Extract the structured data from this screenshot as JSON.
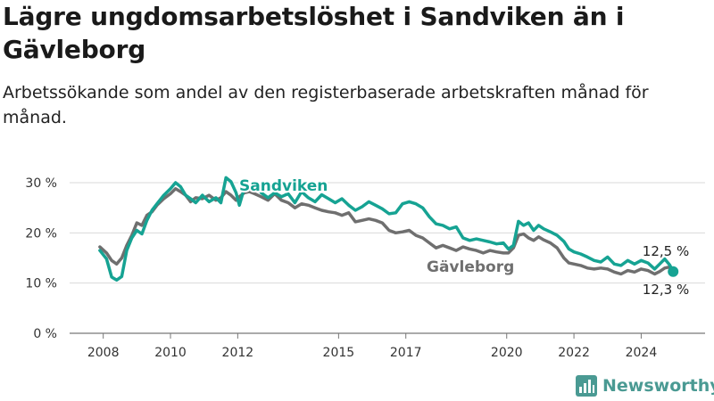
{
  "header": {
    "title": "Lägre ungdomsarbetslöshet i Sandviken än i Gävleborg",
    "subtitle": "Arbetssökande som andel av den registerbaserade arbetskraften månad för månad."
  },
  "brand": {
    "name": "Newsworthy",
    "color": "#4a9a93"
  },
  "chart_data": {
    "type": "line",
    "title": "Lägre ungdomsarbetslöshet i Sandviken än i Gävleborg",
    "subtitle": "Arbetssökande som andel av den registerbaserade arbetskraften månad för månad.",
    "xlabel": "",
    "ylabel": "",
    "ylim": [
      0,
      30
    ],
    "xlim": [
      2007.0,
      2025.9
    ],
    "grid": true,
    "y_ticks": [
      0,
      10,
      20,
      30
    ],
    "y_tick_labels": [
      "0 %",
      "10 %",
      "20 %",
      "30 %"
    ],
    "x_ticks": [
      2008,
      2010,
      2012,
      2015,
      2017,
      2020,
      2022,
      2024
    ],
    "x_tick_labels": [
      "2008",
      "2010",
      "2012",
      "2015",
      "2017",
      "2020",
      "2022",
      "2024"
    ],
    "series": [
      {
        "name": "Sandviken",
        "color": "#16a393",
        "end_label": "12,3 %",
        "points": [
          [
            2007.9,
            16.5
          ],
          [
            2008.1,
            14.8
          ],
          [
            2008.25,
            11.2
          ],
          [
            2008.4,
            10.6
          ],
          [
            2008.55,
            11.3
          ],
          [
            2008.7,
            16.5
          ],
          [
            2008.85,
            19.0
          ],
          [
            2009.0,
            20.5
          ],
          [
            2009.15,
            19.8
          ],
          [
            2009.3,
            22.5
          ],
          [
            2009.45,
            24.5
          ],
          [
            2009.6,
            25.8
          ],
          [
            2009.8,
            27.5
          ],
          [
            2010.0,
            28.8
          ],
          [
            2010.15,
            30.0
          ],
          [
            2010.3,
            29.2
          ],
          [
            2010.45,
            27.5
          ],
          [
            2010.6,
            26.8
          ],
          [
            2010.75,
            26.0
          ],
          [
            2010.95,
            27.5
          ],
          [
            2011.15,
            26.2
          ],
          [
            2011.35,
            27.0
          ],
          [
            2011.5,
            26.0
          ],
          [
            2011.65,
            31.0
          ],
          [
            2011.8,
            30.2
          ],
          [
            2011.95,
            28.0
          ],
          [
            2012.05,
            25.5
          ],
          [
            2012.2,
            29.0
          ],
          [
            2012.35,
            29.8
          ],
          [
            2012.5,
            30.0
          ],
          [
            2012.7,
            28.0
          ],
          [
            2012.9,
            27.0
          ],
          [
            2013.1,
            28.0
          ],
          [
            2013.3,
            27.2
          ],
          [
            2013.5,
            27.8
          ],
          [
            2013.7,
            26.0
          ],
          [
            2013.9,
            28.2
          ],
          [
            2014.1,
            27.0
          ],
          [
            2014.3,
            26.2
          ],
          [
            2014.5,
            27.6
          ],
          [
            2014.7,
            26.8
          ],
          [
            2014.9,
            26.0
          ],
          [
            2015.1,
            26.8
          ],
          [
            2015.3,
            25.5
          ],
          [
            2015.5,
            24.5
          ],
          [
            2015.7,
            25.2
          ],
          [
            2015.9,
            26.2
          ],
          [
            2016.1,
            25.5
          ],
          [
            2016.3,
            24.8
          ],
          [
            2016.5,
            23.8
          ],
          [
            2016.7,
            24.0
          ],
          [
            2016.9,
            25.8
          ],
          [
            2017.1,
            26.2
          ],
          [
            2017.3,
            25.8
          ],
          [
            2017.5,
            25.0
          ],
          [
            2017.7,
            23.2
          ],
          [
            2017.9,
            21.8
          ],
          [
            2018.1,
            21.5
          ],
          [
            2018.3,
            20.8
          ],
          [
            2018.5,
            21.2
          ],
          [
            2018.7,
            19.0
          ],
          [
            2018.9,
            18.5
          ],
          [
            2019.1,
            18.8
          ],
          [
            2019.3,
            18.5
          ],
          [
            2019.5,
            18.2
          ],
          [
            2019.7,
            17.8
          ],
          [
            2019.9,
            18.0
          ],
          [
            2020.05,
            16.8
          ],
          [
            2020.2,
            17.5
          ],
          [
            2020.35,
            22.3
          ],
          [
            2020.5,
            21.5
          ],
          [
            2020.65,
            22.0
          ],
          [
            2020.8,
            20.5
          ],
          [
            2020.95,
            21.5
          ],
          [
            2021.1,
            20.8
          ],
          [
            2021.3,
            20.2
          ],
          [
            2021.5,
            19.5
          ],
          [
            2021.7,
            18.3
          ],
          [
            2021.85,
            16.8
          ],
          [
            2022.0,
            16.2
          ],
          [
            2022.2,
            15.8
          ],
          [
            2022.4,
            15.2
          ],
          [
            2022.6,
            14.5
          ],
          [
            2022.8,
            14.2
          ],
          [
            2023.0,
            15.2
          ],
          [
            2023.2,
            13.8
          ],
          [
            2023.4,
            13.5
          ],
          [
            2023.6,
            14.5
          ],
          [
            2023.8,
            13.8
          ],
          [
            2024.0,
            14.5
          ],
          [
            2024.2,
            14.0
          ],
          [
            2024.4,
            12.8
          ],
          [
            2024.55,
            13.8
          ],
          [
            2024.7,
            14.8
          ],
          [
            2024.85,
            13.6
          ],
          [
            2024.95,
            12.3
          ]
        ]
      },
      {
        "name": "Gävleborg",
        "color": "#6f6f6f",
        "end_label": "12,5 %",
        "points": [
          [
            2007.9,
            17.2
          ],
          [
            2008.1,
            16.0
          ],
          [
            2008.25,
            14.5
          ],
          [
            2008.4,
            13.8
          ],
          [
            2008.55,
            15.0
          ],
          [
            2008.7,
            17.5
          ],
          [
            2008.85,
            19.5
          ],
          [
            2009.0,
            22.0
          ],
          [
            2009.15,
            21.5
          ],
          [
            2009.3,
            23.5
          ],
          [
            2009.45,
            24.2
          ],
          [
            2009.6,
            25.5
          ],
          [
            2009.8,
            26.8
          ],
          [
            2010.0,
            27.8
          ],
          [
            2010.15,
            28.8
          ],
          [
            2010.3,
            28.2
          ],
          [
            2010.45,
            27.5
          ],
          [
            2010.6,
            26.2
          ],
          [
            2010.75,
            27.0
          ],
          [
            2010.95,
            26.8
          ],
          [
            2011.15,
            27.5
          ],
          [
            2011.35,
            26.5
          ],
          [
            2011.5,
            27.0
          ],
          [
            2011.65,
            28.2
          ],
          [
            2011.8,
            27.5
          ],
          [
            2011.95,
            26.5
          ],
          [
            2012.05,
            27.2
          ],
          [
            2012.2,
            28.0
          ],
          [
            2012.35,
            28.2
          ],
          [
            2012.5,
            27.8
          ],
          [
            2012.7,
            27.2
          ],
          [
            2012.9,
            26.5
          ],
          [
            2013.1,
            27.8
          ],
          [
            2013.3,
            26.5
          ],
          [
            2013.5,
            26.0
          ],
          [
            2013.7,
            25.0
          ],
          [
            2013.9,
            25.8
          ],
          [
            2014.1,
            25.5
          ],
          [
            2014.3,
            25.0
          ],
          [
            2014.5,
            24.5
          ],
          [
            2014.7,
            24.2
          ],
          [
            2014.9,
            24.0
          ],
          [
            2015.1,
            23.5
          ],
          [
            2015.3,
            24.0
          ],
          [
            2015.5,
            22.2
          ],
          [
            2015.7,
            22.5
          ],
          [
            2015.9,
            22.8
          ],
          [
            2016.1,
            22.5
          ],
          [
            2016.3,
            22.0
          ],
          [
            2016.5,
            20.5
          ],
          [
            2016.7,
            20.0
          ],
          [
            2016.9,
            20.2
          ],
          [
            2017.1,
            20.5
          ],
          [
            2017.3,
            19.5
          ],
          [
            2017.5,
            19.0
          ],
          [
            2017.7,
            18.0
          ],
          [
            2017.9,
            17.0
          ],
          [
            2018.1,
            17.5
          ],
          [
            2018.3,
            17.0
          ],
          [
            2018.5,
            16.5
          ],
          [
            2018.7,
            17.2
          ],
          [
            2018.9,
            16.8
          ],
          [
            2019.1,
            16.5
          ],
          [
            2019.3,
            16.0
          ],
          [
            2019.5,
            16.5
          ],
          [
            2019.7,
            16.2
          ],
          [
            2019.9,
            16.0
          ],
          [
            2020.05,
            16.0
          ],
          [
            2020.2,
            17.0
          ],
          [
            2020.35,
            19.5
          ],
          [
            2020.5,
            19.8
          ],
          [
            2020.65,
            19.0
          ],
          [
            2020.8,
            18.5
          ],
          [
            2020.95,
            19.2
          ],
          [
            2021.1,
            18.6
          ],
          [
            2021.3,
            18.0
          ],
          [
            2021.5,
            17.0
          ],
          [
            2021.7,
            15.0
          ],
          [
            2021.85,
            14.0
          ],
          [
            2022.0,
            13.8
          ],
          [
            2022.2,
            13.5
          ],
          [
            2022.4,
            13.0
          ],
          [
            2022.6,
            12.8
          ],
          [
            2022.8,
            13.0
          ],
          [
            2023.0,
            12.8
          ],
          [
            2023.2,
            12.2
          ],
          [
            2023.4,
            11.8
          ],
          [
            2023.6,
            12.5
          ],
          [
            2023.8,
            12.2
          ],
          [
            2024.0,
            12.8
          ],
          [
            2024.2,
            12.5
          ],
          [
            2024.4,
            11.8
          ],
          [
            2024.55,
            12.3
          ],
          [
            2024.7,
            13.0
          ],
          [
            2024.85,
            13.2
          ],
          [
            2024.95,
            12.5
          ]
        ]
      }
    ],
    "annotations": [
      {
        "text": "Sandviken",
        "series": "Sandviken"
      },
      {
        "text": "Gävleborg",
        "series": "Gävleborg"
      },
      {
        "text": "12,5 %",
        "series": "Gävleborg"
      },
      {
        "text": "12,3 %",
        "series": "Sandviken"
      }
    ]
  }
}
